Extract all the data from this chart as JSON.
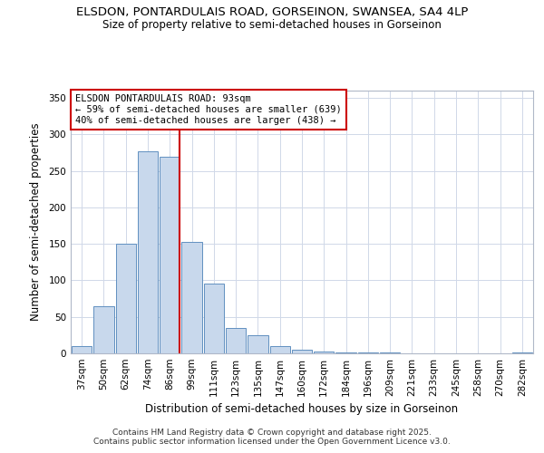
{
  "title1": "ELSDON, PONTARDULAIS ROAD, GORSEINON, SWANSEA, SA4 4LP",
  "title2": "Size of property relative to semi-detached houses in Gorseinon",
  "xlabel": "Distribution of semi-detached houses by size in Gorseinon",
  "ylabel": "Number of semi-detached properties",
  "categories": [
    "37sqm",
    "50sqm",
    "62sqm",
    "74sqm",
    "86sqm",
    "99sqm",
    "111sqm",
    "123sqm",
    "135sqm",
    "147sqm",
    "160sqm",
    "172sqm",
    "184sqm",
    "196sqm",
    "209sqm",
    "221sqm",
    "233sqm",
    "245sqm",
    "258sqm",
    "270sqm",
    "282sqm"
  ],
  "values": [
    10,
    65,
    150,
    277,
    270,
    153,
    95,
    35,
    25,
    10,
    5,
    2,
    1,
    1,
    1,
    0,
    0,
    0,
    0,
    0,
    1
  ],
  "bar_color": "#c8d8ec",
  "bar_edge_color": "#6090c0",
  "vline_color": "#cc0000",
  "vline_x": 4.46,
  "annot_title": "ELSDON PONTARDULAIS ROAD: 93sqm",
  "annot_line1": "← 59% of semi-detached houses are smaller (639)",
  "annot_line2": "40% of semi-detached houses are larger (438) →",
  "footer1": "Contains HM Land Registry data © Crown copyright and database right 2025.",
  "footer2": "Contains public sector information licensed under the Open Government Licence v3.0.",
  "ylim": [
    0,
    360
  ],
  "yticks": [
    0,
    50,
    100,
    150,
    200,
    250,
    300,
    350
  ],
  "bg_color": "#ffffff",
  "plot_bg_color": "#ffffff",
  "grid_color": "#d0d8e8",
  "title1_fontsize": 9.5,
  "title2_fontsize": 8.5,
  "xlabel_fontsize": 8.5,
  "ylabel_fontsize": 8.5,
  "tick_fontsize": 7.5,
  "footer_fontsize": 6.5
}
